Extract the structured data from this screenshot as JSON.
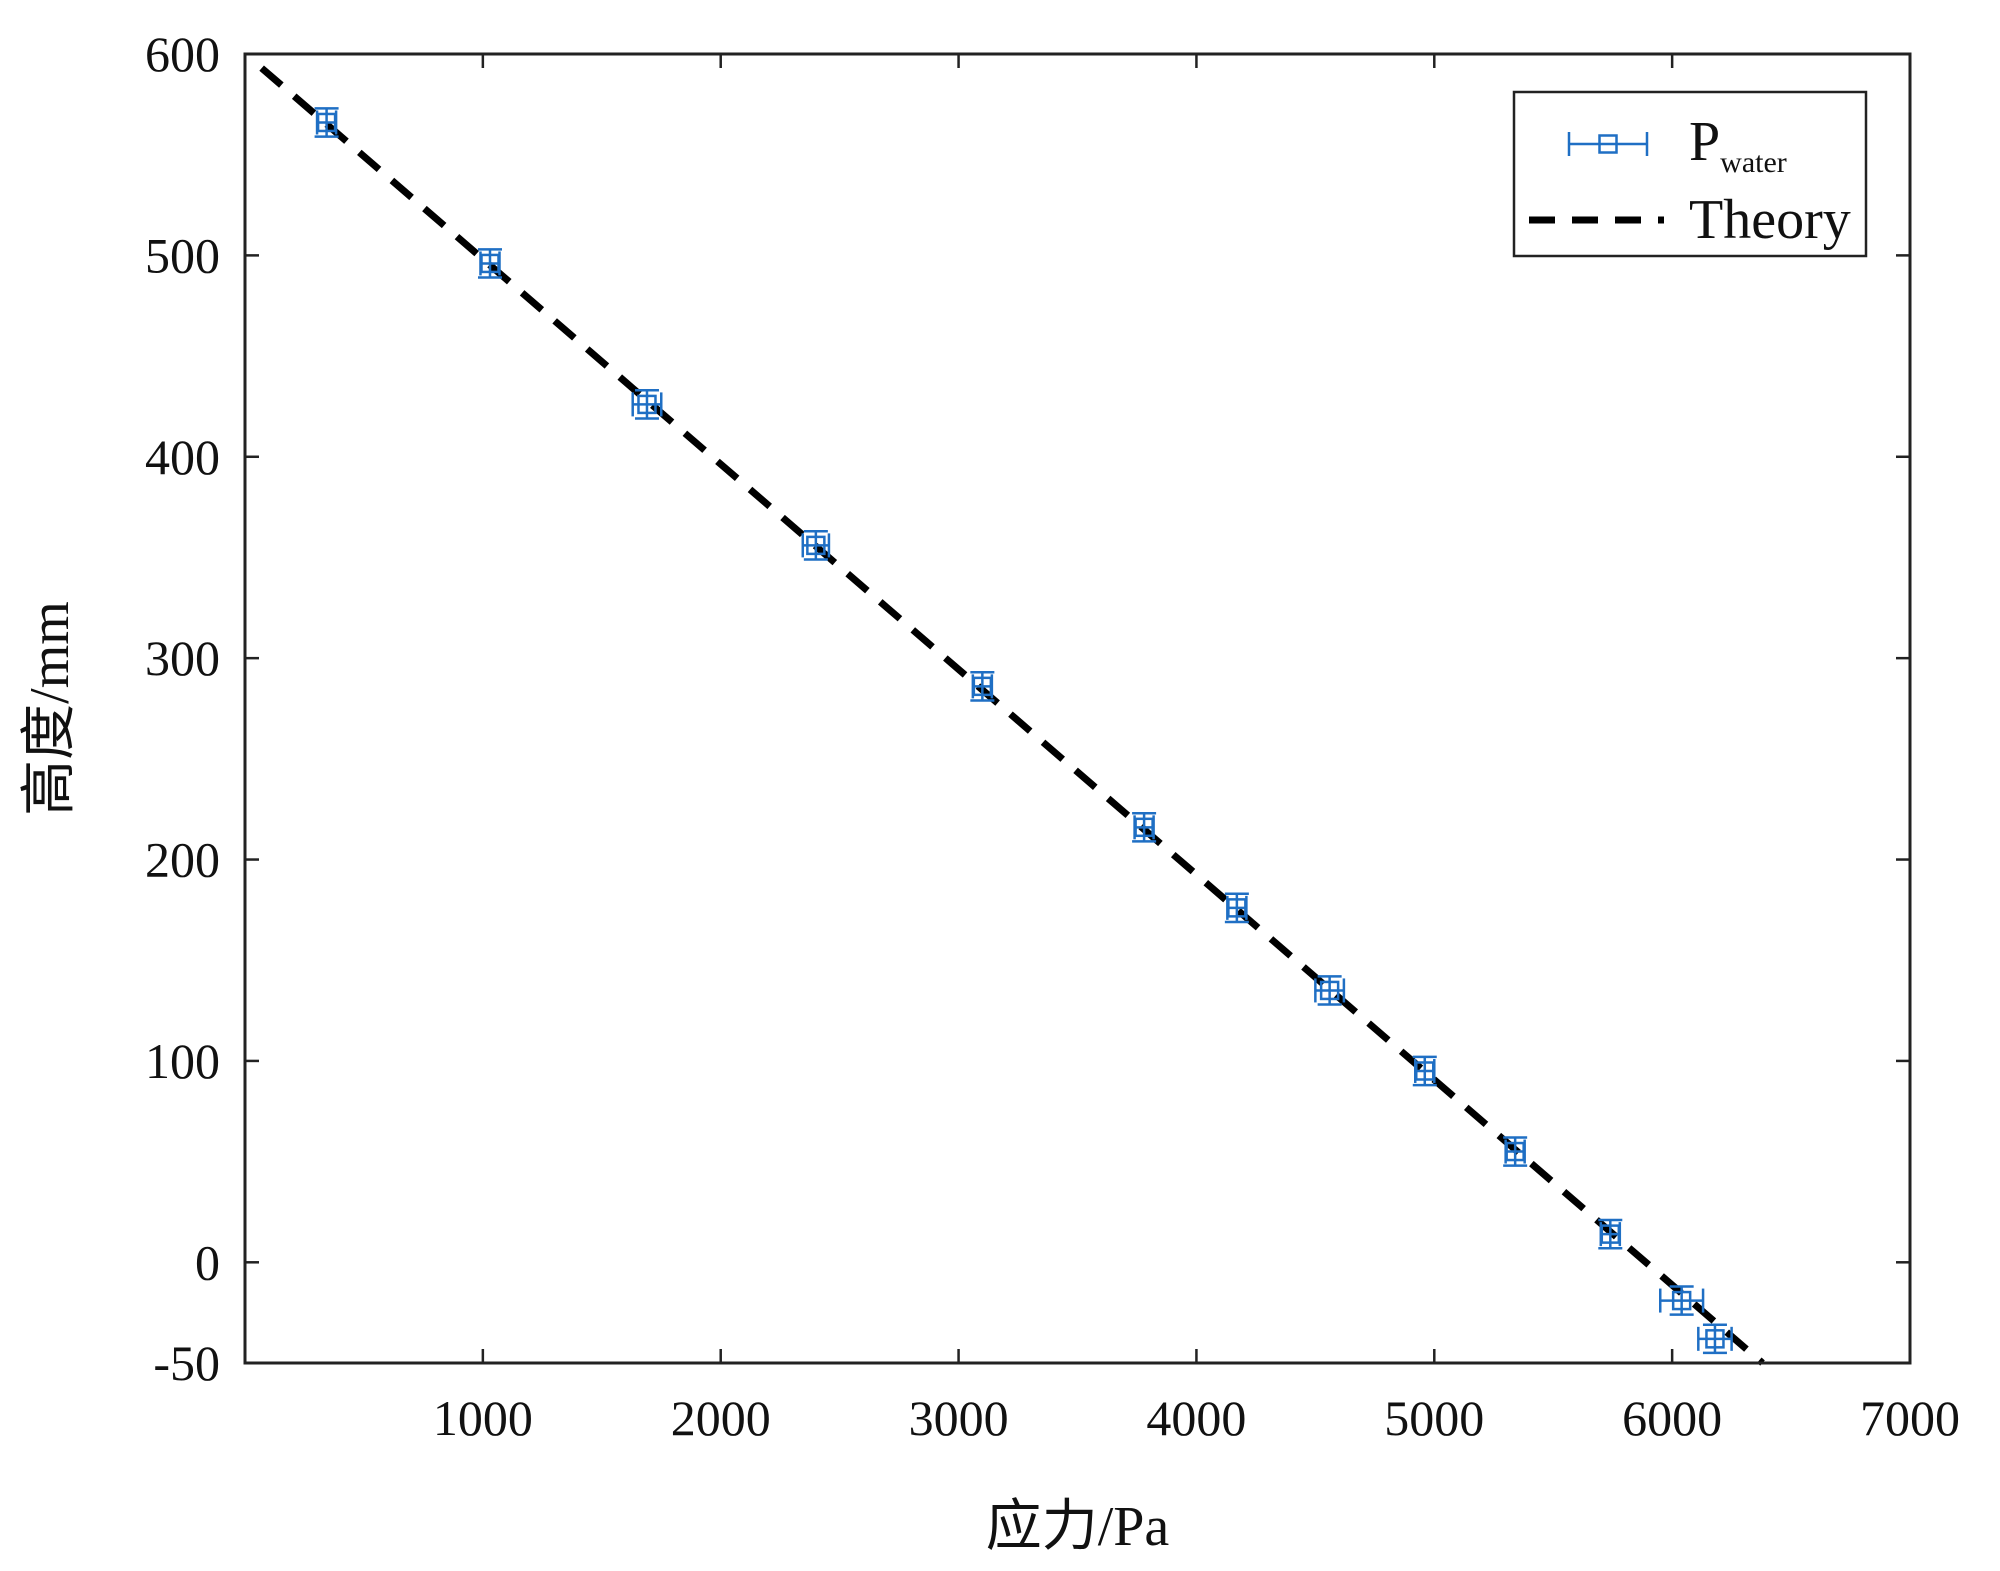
{
  "chart_data": {
    "type": "scatter",
    "xlabel": "应力/Pa",
    "ylabel": "高度/mm",
    "xlim": [
      0,
      7000
    ],
    "ylim": [
      -50,
      600
    ],
    "x_ticks": [
      1000,
      2000,
      3000,
      4000,
      5000,
      6000,
      7000
    ],
    "x_tick_labels": [
      "1000",
      "2000",
      "3000",
      "4000",
      "5000",
      "6000",
      "7000"
    ],
    "y_ticks": [
      -50,
      0,
      100,
      200,
      300,
      400,
      500,
      600
    ],
    "y_tick_labels": [
      "-50",
      "0",
      "100",
      "200",
      "300",
      "400",
      "500",
      "600"
    ],
    "grid": false,
    "legend_position": "top-right",
    "series": [
      {
        "name": "P",
        "name_subscript": "water",
        "kind": "errorbar",
        "marker": "square",
        "color": "#1f6fc4",
        "points": [
          {
            "x": 343,
            "y": 566,
            "xerr": 40,
            "yerr": 7
          },
          {
            "x": 1030,
            "y": 496,
            "xerr": 40,
            "yerr": 7
          },
          {
            "x": 1690,
            "y": 426,
            "xerr": 60,
            "yerr": 7
          },
          {
            "x": 2400,
            "y": 356,
            "xerr": 55,
            "yerr": 7
          },
          {
            "x": 3100,
            "y": 286,
            "xerr": 40,
            "yerr": 7
          },
          {
            "x": 3780,
            "y": 216,
            "xerr": 40,
            "yerr": 7
          },
          {
            "x": 4170,
            "y": 176,
            "xerr": 40,
            "yerr": 7
          },
          {
            "x": 4560,
            "y": 135,
            "xerr": 60,
            "yerr": 7
          },
          {
            "x": 4960,
            "y": 95,
            "xerr": 40,
            "yerr": 7
          },
          {
            "x": 5340,
            "y": 55,
            "xerr": 40,
            "yerr": 7
          },
          {
            "x": 5740,
            "y": 14,
            "xerr": 40,
            "yerr": 7
          },
          {
            "x": 6040,
            "y": -19,
            "xerr": 90,
            "yerr": 7
          },
          {
            "x": 6180,
            "y": -38,
            "xerr": 70,
            "yerr": 7
          }
        ]
      },
      {
        "name": "Theory",
        "kind": "line",
        "dash": "dashed",
        "color": "#000000",
        "x": [
          70,
          6380
        ],
        "y": [
          593,
          -50
        ]
      }
    ]
  }
}
